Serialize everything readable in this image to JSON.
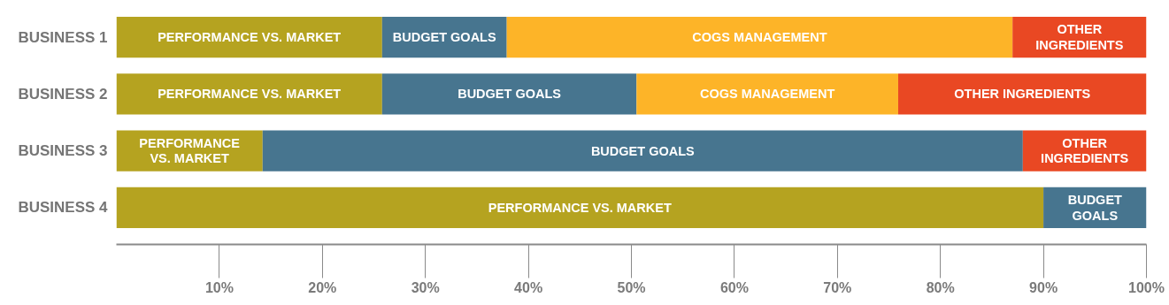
{
  "chart_data": {
    "type": "bar",
    "orientation": "horizontal",
    "stacked": true,
    "categories": [
      "BUSINESS 1",
      "BUSINESS 2",
      "BUSINESS 3",
      "BUSINESS 4"
    ],
    "series": [
      {
        "name": "PERFORMANCE VS. MARKET",
        "color": "#b5a320",
        "values": [
          25.8,
          25.8,
          14.2,
          90.0
        ]
      },
      {
        "name": "BUDGET GOALS",
        "color": "#47758f",
        "values": [
          12.1,
          24.7,
          73.8,
          10.0
        ]
      },
      {
        "name": "COGS MANAGEMENT",
        "color": "#fdb428",
        "values": [
          49.1,
          25.4,
          null,
          null
        ]
      },
      {
        "name": "OTHER INGREDIENTS",
        "color": "#e94823",
        "values": [
          13.0,
          24.1,
          12.0,
          null
        ]
      }
    ],
    "xlim": [
      0,
      100
    ],
    "xticks": [
      {
        "value": 10,
        "label": "10%"
      },
      {
        "value": 20,
        "label": "20%"
      },
      {
        "value": 30,
        "label": "30%"
      },
      {
        "value": 40,
        "label": "40%"
      },
      {
        "value": 50,
        "label": "50%"
      },
      {
        "value": 60,
        "label": "60%"
      },
      {
        "value": 70,
        "label": "70%"
      },
      {
        "value": 80,
        "label": "80%"
      },
      {
        "value": 90,
        "label": "90%"
      },
      {
        "value": 100,
        "label": "100%"
      }
    ],
    "grid": false
  }
}
